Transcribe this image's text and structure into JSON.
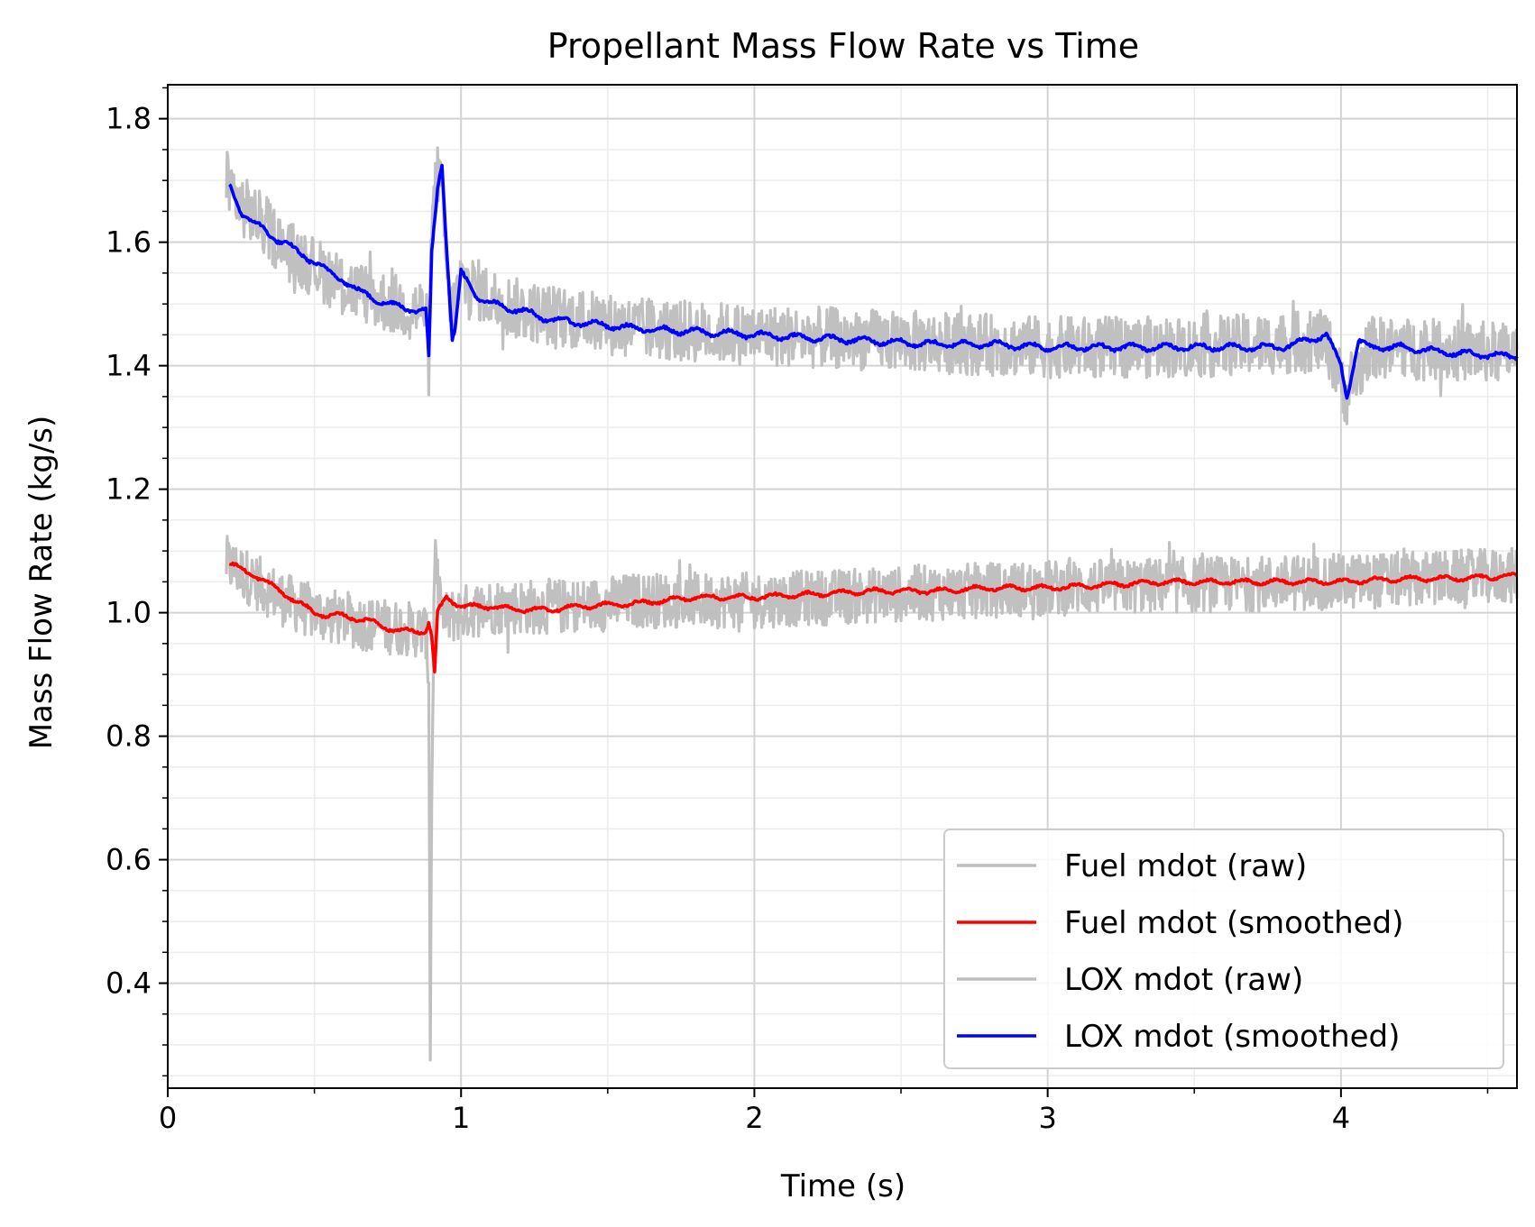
{
  "chart_data": {
    "type": "line",
    "title": "Propellant Mass Flow Rate vs Time",
    "xlabel": "Time (s)",
    "ylabel": "Mass Flow Rate (kg/s)",
    "xlim": [
      0,
      4.6
    ],
    "ylim": [
      0.23,
      1.855
    ],
    "x_ticks": [
      0,
      1,
      2,
      3,
      4
    ],
    "x_tick_labels": [
      "0",
      "1",
      "2",
      "3",
      "4"
    ],
    "y_ticks": [
      0.4,
      0.6,
      0.8,
      1.0,
      1.2,
      1.4,
      1.6,
      1.8
    ],
    "y_tick_labels": [
      "0.4",
      "0.6",
      "0.8",
      "1.0",
      "1.2",
      "1.4",
      "1.6",
      "1.8"
    ],
    "grid": "major and minor",
    "legend_position": "lower-right",
    "series": [
      {
        "name": "Fuel mdot (raw)",
        "color": "#bdbdbd",
        "noise": 0.045,
        "x": [
          0.2,
          0.3,
          0.4,
          0.5,
          0.6,
          0.7,
          0.8,
          0.88,
          0.89,
          0.895,
          0.9,
          0.91,
          0.93,
          0.95,
          1.0,
          1.1,
          1.2,
          1.4,
          1.6,
          1.8,
          2.0,
          2.5,
          3.0,
          3.5,
          4.0,
          4.6
        ],
        "y": [
          1.08,
          1.05,
          1.02,
          1.0,
          0.99,
          0.98,
          0.975,
          0.97,
          0.9,
          0.3,
          0.7,
          1.1,
          1.0,
          0.99,
          1.0,
          1.01,
          1.01,
          1.01,
          1.02,
          1.02,
          1.02,
          1.03,
          1.04,
          1.045,
          1.05,
          1.06
        ]
      },
      {
        "name": "Fuel mdot (smoothed)",
        "color": "#ff0000",
        "noise": 0.006,
        "x": [
          0.21,
          0.25,
          0.3,
          0.35,
          0.4,
          0.45,
          0.5,
          0.55,
          0.6,
          0.7,
          0.75,
          0.8,
          0.88,
          0.89,
          0.9,
          0.91,
          0.92,
          0.95,
          1.0,
          1.1,
          1.2,
          1.3,
          1.4,
          1.6,
          1.8,
          2.0,
          2.2,
          2.4,
          2.6,
          2.8,
          3.0,
          3.2,
          3.4,
          3.6,
          3.8,
          4.0,
          4.2,
          4.4,
          4.6
        ],
        "y": [
          1.08,
          1.07,
          1.06,
          1.045,
          1.03,
          1.015,
          1.0,
          0.995,
          0.995,
          0.985,
          0.975,
          0.97,
          0.97,
          0.985,
          0.96,
          0.9,
          1.0,
          1.025,
          1.01,
          1.01,
          1.005,
          1.005,
          1.01,
          1.015,
          1.025,
          1.025,
          1.03,
          1.035,
          1.035,
          1.04,
          1.04,
          1.045,
          1.05,
          1.05,
          1.05,
          1.05,
          1.055,
          1.055,
          1.06
        ]
      },
      {
        "name": "LOX mdot (raw)",
        "color": "#bdbdbd",
        "noise": 0.05,
        "x": [
          0.2,
          0.25,
          0.3,
          0.4,
          0.5,
          0.6,
          0.7,
          0.8,
          0.88,
          0.89,
          0.9,
          0.92,
          0.94,
          0.96,
          0.98,
          1.0,
          1.1,
          1.2,
          1.4,
          1.6,
          1.8,
          2.0,
          2.5,
          3.0,
          3.5,
          3.95,
          4.02,
          4.1,
          4.6
        ],
        "y": [
          1.7,
          1.66,
          1.64,
          1.59,
          1.56,
          1.53,
          1.51,
          1.495,
          1.49,
          1.4,
          1.62,
          1.72,
          1.65,
          1.48,
          1.5,
          1.54,
          1.51,
          1.49,
          1.475,
          1.46,
          1.455,
          1.45,
          1.44,
          1.43,
          1.43,
          1.44,
          1.35,
          1.43,
          1.42
        ]
      },
      {
        "name": "LOX mdot (smoothed)",
        "color": "#0000ff",
        "noise": 0.008,
        "x": [
          0.21,
          0.25,
          0.3,
          0.35,
          0.4,
          0.45,
          0.5,
          0.55,
          0.6,
          0.65,
          0.7,
          0.75,
          0.8,
          0.85,
          0.88,
          0.89,
          0.9,
          0.915,
          0.92,
          0.935,
          0.95,
          0.97,
          0.98,
          1.0,
          1.03,
          1.06,
          1.1,
          1.2,
          1.3,
          1.4,
          1.5,
          1.6,
          1.8,
          2.0,
          2.2,
          2.4,
          2.6,
          2.8,
          3.0,
          3.2,
          3.4,
          3.6,
          3.8,
          3.95,
          4.0,
          4.02,
          4.06,
          4.1,
          4.2,
          4.4,
          4.6
        ],
        "y": [
          1.69,
          1.65,
          1.63,
          1.61,
          1.6,
          1.58,
          1.57,
          1.55,
          1.54,
          1.52,
          1.51,
          1.5,
          1.495,
          1.49,
          1.49,
          1.41,
          1.58,
          1.66,
          1.69,
          1.73,
          1.6,
          1.44,
          1.46,
          1.55,
          1.53,
          1.51,
          1.5,
          1.49,
          1.475,
          1.47,
          1.465,
          1.46,
          1.455,
          1.45,
          1.445,
          1.44,
          1.435,
          1.435,
          1.43,
          1.43,
          1.43,
          1.43,
          1.43,
          1.45,
          1.4,
          1.35,
          1.44,
          1.43,
          1.43,
          1.42,
          1.415
        ]
      }
    ]
  }
}
